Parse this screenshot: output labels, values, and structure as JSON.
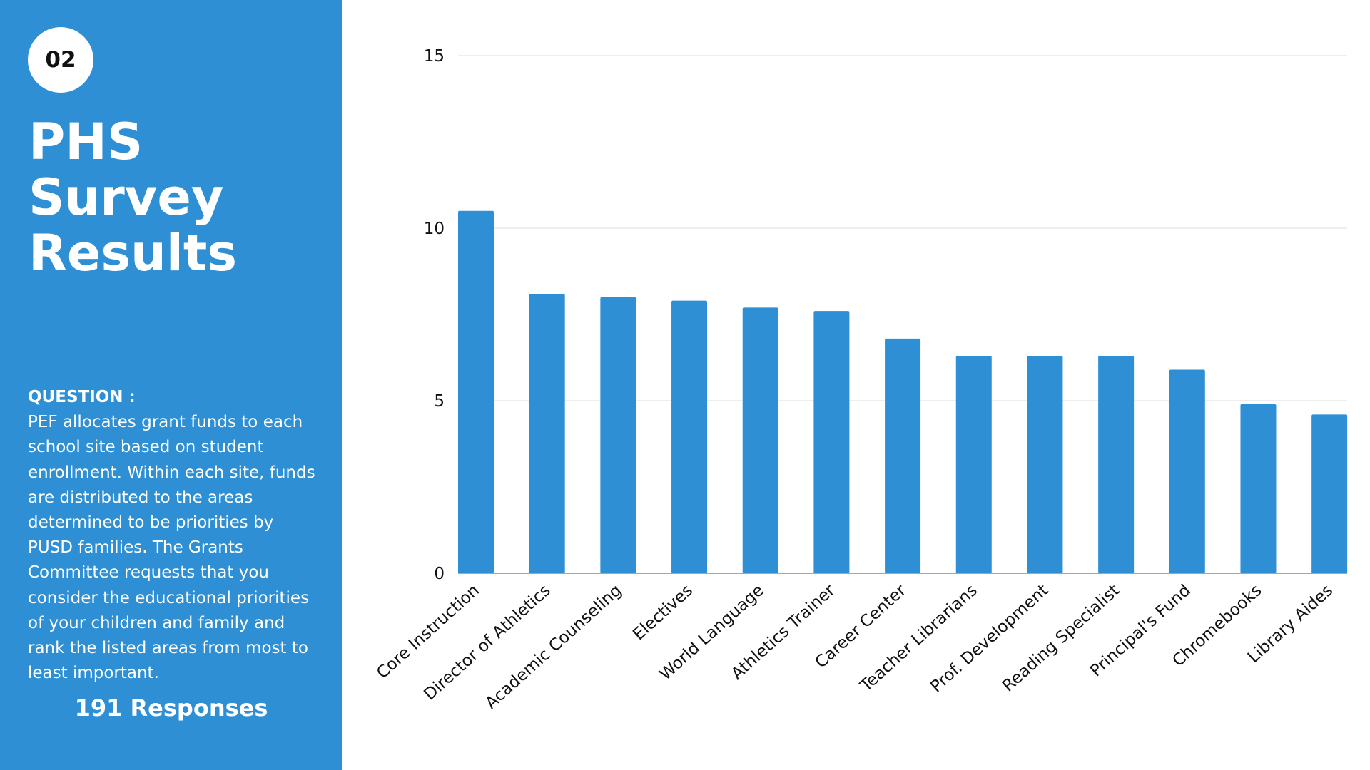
{
  "slide": {
    "number": "02",
    "title_lines": [
      "PHS",
      "Survey",
      "Results"
    ],
    "question_label": "QUESTION :",
    "question_text": "PEF allocates grant funds to each school site based on student enrollment. Within each site, funds are distributed to the areas determined to be priorities by PUSD families.  The Grants Committee requests that you consider the educational priorities of your children and family and rank the listed areas from most to least important.",
    "responses": "191 Responses"
  },
  "colors": {
    "accent": "#2e8fd5",
    "grid": "#dcdcdc",
    "axis": "#888888"
  },
  "chart_data": {
    "type": "bar",
    "categories": [
      "Core Instruction",
      "Director of Athletics",
      "Academic Counseling",
      "Electives",
      "World Language",
      "Athletics Trainer",
      "Career Center",
      "Teacher Librarians",
      "Prof. Development",
      "Reading Specialist",
      "Principal's Fund",
      "Chromebooks",
      "Library Aides"
    ],
    "values": [
      10.5,
      8.1,
      8.0,
      7.9,
      7.7,
      7.6,
      6.8,
      6.3,
      6.3,
      6.3,
      5.9,
      4.9,
      4.6
    ],
    "yticks": [
      0,
      5,
      10,
      15
    ],
    "ylim": [
      0,
      15
    ],
    "grid": true,
    "title": "",
    "xlabel": "",
    "ylabel": ""
  }
}
